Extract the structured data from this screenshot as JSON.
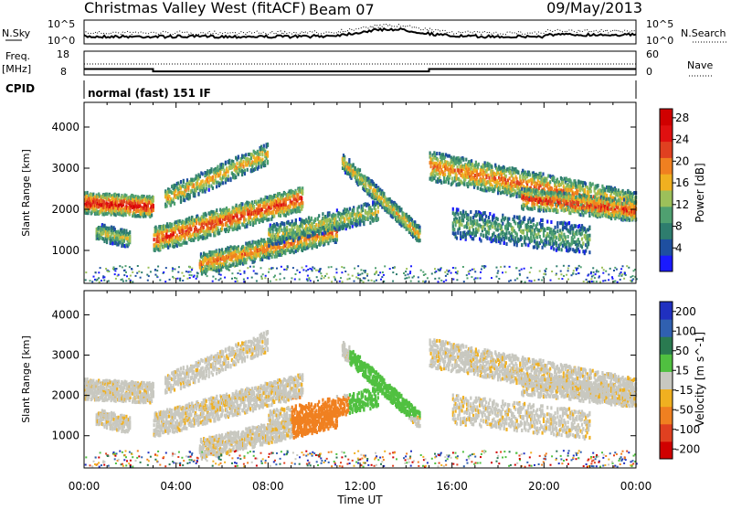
{
  "chart_data": {
    "type": "heatmap",
    "title": "Christmas Valley West (fitACF)",
    "beam": "Beam 07",
    "date": "09/May/2013",
    "xlabel": "Time UT",
    "x_ticks": [
      "00:00",
      "04:00",
      "08:00",
      "12:00",
      "16:00",
      "20:00",
      "00:00"
    ],
    "xlim_hours": [
      0,
      24
    ],
    "top_panels": {
      "nsky": {
        "label": "N.Sky",
        "right_label": "N.Search",
        "left_ticks": [
          "10^5",
          "10^0"
        ],
        "right_ticks": [
          "10^5",
          "10^0"
        ]
      },
      "freq": {
        "label": "Freq.",
        "unit": "[MHz]",
        "right_label": "Nave",
        "left_ticks": [
          "18",
          "8"
        ],
        "right_ticks": [
          "60",
          "0"
        ],
        "segments": [
          {
            "start_hour": 0,
            "end_hour": 3,
            "freq_mhz": 10.5
          },
          {
            "start_hour": 3,
            "end_hour": 15,
            "freq_mhz": 9.5
          },
          {
            "start_hour": 15,
            "end_hour": 24,
            "freq_mhz": 10.5
          }
        ]
      },
      "cpid": {
        "label": "CPID",
        "value": "normal (fast) 151 IF"
      }
    },
    "power_panel": {
      "ylabel": "Slant Range [km]",
      "y_ticks": [
        1000,
        2000,
        3000,
        4000
      ],
      "ylim": [
        200,
        4600
      ],
      "colorbar_label": "Power [dB]",
      "colorbar_ticks": [
        4,
        8,
        12,
        16,
        20,
        24,
        28
      ],
      "colorbar_colors": [
        "#1a1aff",
        "#1e4fa0",
        "#2e7d6e",
        "#4fa070",
        "#9cc05a",
        "#f0b020",
        "#f08020",
        "#e04020",
        "#e01010",
        "#d00000"
      ]
    },
    "velocity_panel": {
      "ylabel": "Slant Range [km]",
      "y_ticks": [
        1000,
        2000,
        3000,
        4000
      ],
      "ylim": [
        200,
        4600
      ],
      "colorbar_label": "Velocity [m s^-1]",
      "colorbar_ticks": [
        200,
        100,
        50,
        15,
        -15,
        -50,
        -100,
        -200
      ],
      "colorbar_colors": [
        "#2030c0",
        "#3060b0",
        "#2a7a50",
        "#50c040",
        "#c8c8c0",
        "#f0b020",
        "#f08020",
        "#e04020",
        "#d00000"
      ]
    }
  }
}
